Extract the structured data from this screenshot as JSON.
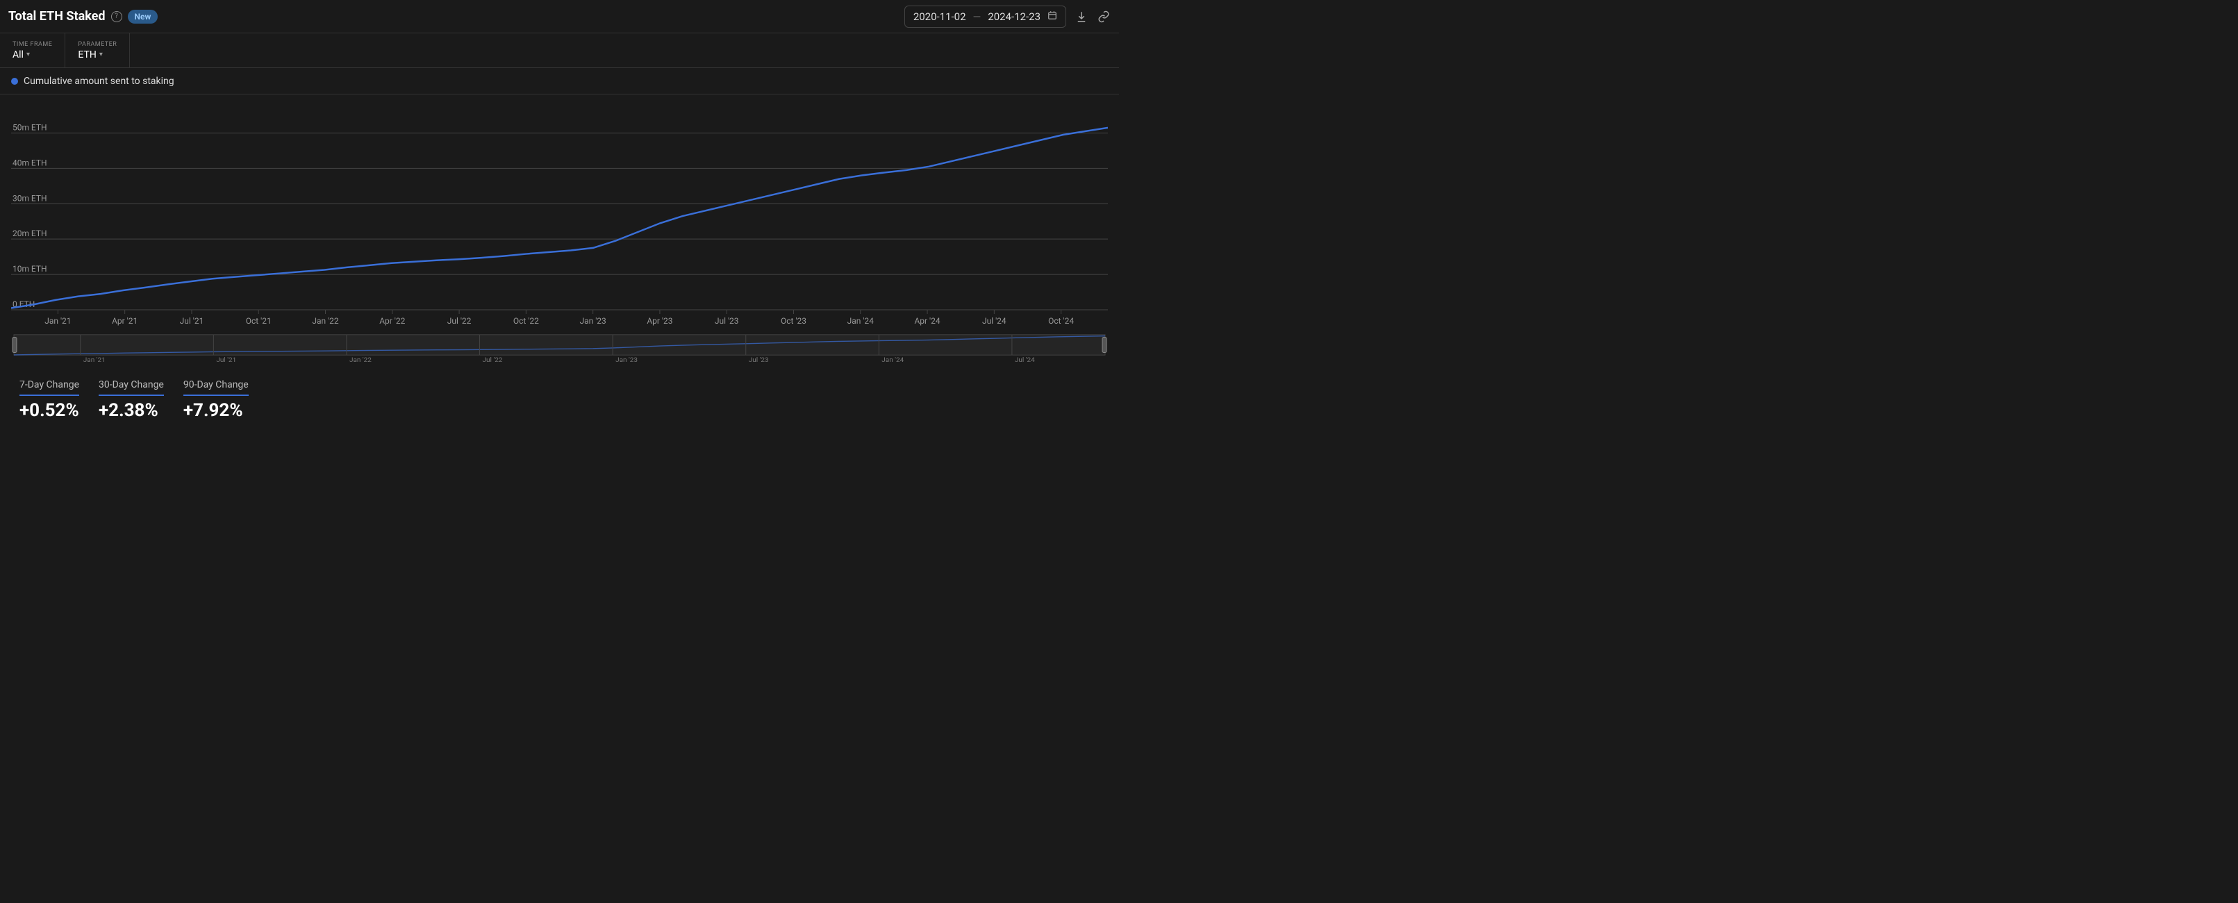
{
  "header": {
    "title": "Total ETH Staked",
    "badge": "New",
    "date_start": "2020-11-02",
    "date_end": "2024-12-23"
  },
  "filters": {
    "timeframe_label": "TIME FRAME",
    "timeframe_value": "All",
    "parameter_label": "PARAMETER",
    "parameter_value": "ETH"
  },
  "legend": {
    "series_name": "Cumulative amount sent to staking",
    "series_color": "#3a6fd8"
  },
  "chart": {
    "type": "line",
    "line_color": "#3a6fd8",
    "line_width": 2.5,
    "background": "#1a1a1a",
    "grid_color": "#444444",
    "y_axis": {
      "min": 0,
      "max": 55,
      "ticks": [
        0,
        10,
        20,
        30,
        40,
        50
      ],
      "tick_labels": [
        "0 ETH",
        "10m ETH",
        "20m ETH",
        "30m ETH",
        "40m ETH",
        "50m ETH"
      ],
      "label_color": "#999999",
      "label_fontsize": 12
    },
    "x_axis": {
      "labels": [
        "Jan '21",
        "Apr '21",
        "Jul '21",
        "Oct '21",
        "Jan '22",
        "Apr '22",
        "Jul '22",
        "Oct '22",
        "Jan '23",
        "Apr '23",
        "Jul '23",
        "Oct '23",
        "Jan '24",
        "Apr '24",
        "Jul '24",
        "Oct '24"
      ],
      "label_color": "#999999",
      "label_fontsize": 12
    },
    "data": [
      {
        "x": 0,
        "y": 0.5
      },
      {
        "x": 1,
        "y": 1.5
      },
      {
        "x": 2,
        "y": 2.8
      },
      {
        "x": 3,
        "y": 3.8
      },
      {
        "x": 4,
        "y": 4.5
      },
      {
        "x": 5,
        "y": 5.5
      },
      {
        "x": 6,
        "y": 6.3
      },
      {
        "x": 7,
        "y": 7.2
      },
      {
        "x": 8,
        "y": 8.0
      },
      {
        "x": 9,
        "y": 8.8
      },
      {
        "x": 10,
        "y": 9.3
      },
      {
        "x": 11,
        "y": 9.8
      },
      {
        "x": 12,
        "y": 10.3
      },
      {
        "x": 13,
        "y": 10.8
      },
      {
        "x": 14,
        "y": 11.3
      },
      {
        "x": 15,
        "y": 12.0
      },
      {
        "x": 16,
        "y": 12.6
      },
      {
        "x": 17,
        "y": 13.2
      },
      {
        "x": 18,
        "y": 13.6
      },
      {
        "x": 19,
        "y": 14.0
      },
      {
        "x": 20,
        "y": 14.3
      },
      {
        "x": 21,
        "y": 14.7
      },
      {
        "x": 22,
        "y": 15.2
      },
      {
        "x": 23,
        "y": 15.8
      },
      {
        "x": 24,
        "y": 16.3
      },
      {
        "x": 25,
        "y": 16.8
      },
      {
        "x": 26,
        "y": 17.5
      },
      {
        "x": 27,
        "y": 19.5
      },
      {
        "x": 28,
        "y": 22.0
      },
      {
        "x": 29,
        "y": 24.5
      },
      {
        "x": 30,
        "y": 26.5
      },
      {
        "x": 31,
        "y": 28.0
      },
      {
        "x": 32,
        "y": 29.5
      },
      {
        "x": 33,
        "y": 31.0
      },
      {
        "x": 34,
        "y": 32.5
      },
      {
        "x": 35,
        "y": 34.0
      },
      {
        "x": 36,
        "y": 35.5
      },
      {
        "x": 37,
        "y": 37.0
      },
      {
        "x": 38,
        "y": 38.0
      },
      {
        "x": 39,
        "y": 38.8
      },
      {
        "x": 40,
        "y": 39.5
      },
      {
        "x": 41,
        "y": 40.5
      },
      {
        "x": 42,
        "y": 42.0
      },
      {
        "x": 43,
        "y": 43.5
      },
      {
        "x": 44,
        "y": 45.0
      },
      {
        "x": 45,
        "y": 46.5
      },
      {
        "x": 46,
        "y": 48.0
      },
      {
        "x": 47,
        "y": 49.5
      },
      {
        "x": 48,
        "y": 50.5
      },
      {
        "x": 49,
        "y": 51.5
      }
    ]
  },
  "brush": {
    "labels": [
      "Jan '21",
      "Jul '21",
      "Jan '22",
      "Jul '22",
      "Jan '23",
      "Jul '23",
      "Jan '24",
      "Jul '24"
    ],
    "line_color": "#3a6fd8",
    "bg_color": "#252525",
    "border_color": "#444444"
  },
  "stats": [
    {
      "label": "7-Day Change",
      "value": "+0.52%"
    },
    {
      "label": "30-Day Change",
      "value": "+2.38%"
    },
    {
      "label": "90-Day Change",
      "value": "+7.92%"
    }
  ],
  "colors": {
    "accent": "#3a6fd8",
    "text_primary": "#ffffff",
    "text_secondary": "#999999",
    "border": "#333333"
  }
}
